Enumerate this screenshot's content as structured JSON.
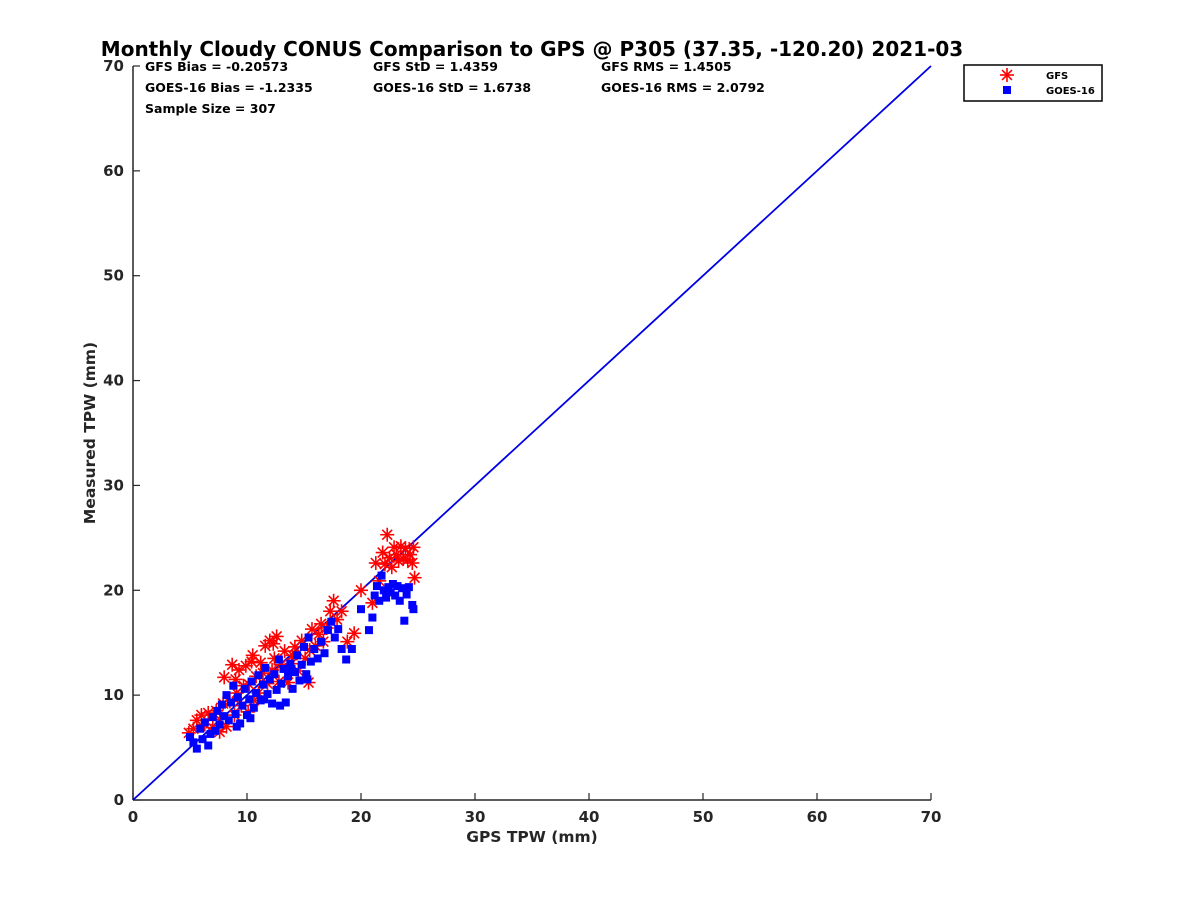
{
  "chart_data": {
    "type": "scatter",
    "title": "Monthly Cloudy CONUS Comparison to GPS @ P305 (37.35, -120.20) 2021-03",
    "xlabel": "GPS TPW (mm)",
    "ylabel": "Measured TPW (mm)",
    "xlim": [
      0,
      70
    ],
    "ylim": [
      0,
      70
    ],
    "xticks": [
      "0",
      "10",
      "20",
      "30",
      "40",
      "50",
      "60",
      "70"
    ],
    "yticks": [
      "0",
      "10",
      "20",
      "30",
      "40",
      "50",
      "60",
      "70"
    ],
    "grid": false,
    "legend_position": "top-right (outside plot)",
    "stats": {
      "gfs_bias": "GFS Bias = -0.20573",
      "gfs_std": "GFS StD = 1.4359",
      "gfs_rms": "GFS RMS = 1.4505",
      "goes_bias": "GOES-16 Bias = -1.2335",
      "goes_std": "GOES-16 StD = 1.6738",
      "goes_rms": "GOES-16 RMS = 2.0792",
      "sample_size": "Sample Size = 307"
    },
    "reference_line": {
      "x": [
        0,
        70
      ],
      "y": [
        0,
        70
      ],
      "color": "#0000e6"
    },
    "series": [
      {
        "name": "GFS",
        "marker": "asterisk",
        "color": "#ff0000",
        "points": [
          [
            4.9,
            6.4
          ],
          [
            5.3,
            6.8
          ],
          [
            5.6,
            7.6
          ],
          [
            6.0,
            8.1
          ],
          [
            6.3,
            7.2
          ],
          [
            6.6,
            8.3
          ],
          [
            7.0,
            6.9
          ],
          [
            7.3,
            8.5
          ],
          [
            7.6,
            7.7
          ],
          [
            7.9,
            9.2
          ],
          [
            8.2,
            7.0
          ],
          [
            8.5,
            9.4
          ],
          [
            8.7,
            12.9
          ],
          [
            8.9,
            8.1
          ],
          [
            9.1,
            10.2
          ],
          [
            9.3,
            12.4
          ],
          [
            9.5,
            9.0
          ],
          [
            9.7,
            10.9
          ],
          [
            9.9,
            12.8
          ],
          [
            10.1,
            8.4
          ],
          [
            10.2,
            11.0
          ],
          [
            10.4,
            13.2
          ],
          [
            10.6,
            9.5
          ],
          [
            10.8,
            11.8
          ],
          [
            11.0,
            10.2
          ],
          [
            11.2,
            13.1
          ],
          [
            11.4,
            12.1
          ],
          [
            11.6,
            14.7
          ],
          [
            11.8,
            11.1
          ],
          [
            12.0,
            15.2
          ],
          [
            12.2,
            12.4
          ],
          [
            12.4,
            13.5
          ],
          [
            12.6,
            15.6
          ],
          [
            12.8,
            11.3
          ],
          [
            13.0,
            12.9
          ],
          [
            13.3,
            14.2
          ],
          [
            13.6,
            11.2
          ],
          [
            13.9,
            13.0
          ],
          [
            14.2,
            14.6
          ],
          [
            14.5,
            12.3
          ],
          [
            14.8,
            15.2
          ],
          [
            15.1,
            13.5
          ],
          [
            15.4,
            11.2
          ],
          [
            15.7,
            16.3
          ],
          [
            16.0,
            14.7
          ],
          [
            16.3,
            15.8
          ],
          [
            16.7,
            15.1
          ],
          [
            17.0,
            16.4
          ],
          [
            17.3,
            18.0
          ],
          [
            17.6,
            19.0
          ],
          [
            17.9,
            17.2
          ],
          [
            18.3,
            18.0
          ],
          [
            18.8,
            15.1
          ],
          [
            19.4,
            15.9
          ],
          [
            20.0,
            20.0
          ],
          [
            21.0,
            18.8
          ],
          [
            21.3,
            22.6
          ],
          [
            21.6,
            20.9
          ],
          [
            21.9,
            23.6
          ],
          [
            22.1,
            22.5
          ],
          [
            22.3,
            25.3
          ],
          [
            22.5,
            23.1
          ],
          [
            22.7,
            22.2
          ],
          [
            22.9,
            24.1
          ],
          [
            23.1,
            23.4
          ],
          [
            23.3,
            22.8
          ],
          [
            23.5,
            24.2
          ],
          [
            23.7,
            23.0
          ],
          [
            23.9,
            24.0
          ],
          [
            24.1,
            22.9
          ],
          [
            24.3,
            23.4
          ],
          [
            24.5,
            22.6
          ],
          [
            24.6,
            24.1
          ],
          [
            24.7,
            21.2
          ],
          [
            8.0,
            11.7
          ],
          [
            7.6,
            6.5
          ],
          [
            9.0,
            11.5
          ],
          [
            10.5,
            13.8
          ],
          [
            12.3,
            14.9
          ],
          [
            14.0,
            13.8
          ],
          [
            15.5,
            14.3
          ],
          [
            16.5,
            16.8
          ]
        ]
      },
      {
        "name": "GOES-16",
        "marker": "square",
        "color": "#0000ff",
        "points": [
          [
            5.0,
            6.0
          ],
          [
            5.3,
            5.5
          ],
          [
            5.6,
            4.9
          ],
          [
            5.9,
            6.8
          ],
          [
            6.1,
            5.8
          ],
          [
            6.3,
            7.4
          ],
          [
            6.6,
            5.2
          ],
          [
            6.8,
            6.3
          ],
          [
            7.0,
            7.9
          ],
          [
            7.2,
            6.6
          ],
          [
            7.4,
            8.5
          ],
          [
            7.6,
            7.2
          ],
          [
            7.8,
            9.1
          ],
          [
            8.0,
            8.0
          ],
          [
            8.2,
            10.0
          ],
          [
            8.4,
            7.6
          ],
          [
            8.6,
            9.3
          ],
          [
            8.8,
            10.9
          ],
          [
            9.0,
            8.2
          ],
          [
            9.2,
            9.8
          ],
          [
            9.4,
            7.3
          ],
          [
            9.6,
            9.0
          ],
          [
            9.8,
            10.6
          ],
          [
            10.0,
            8.1
          ],
          [
            10.2,
            9.6
          ],
          [
            10.4,
            11.3
          ],
          [
            10.6,
            8.8
          ],
          [
            10.8,
            10.2
          ],
          [
            11.0,
            11.9
          ],
          [
            11.2,
            9.5
          ],
          [
            11.4,
            11.0
          ],
          [
            11.6,
            12.6
          ],
          [
            11.8,
            10.1
          ],
          [
            12.0,
            11.5
          ],
          [
            12.2,
            9.2
          ],
          [
            12.4,
            12.0
          ],
          [
            12.6,
            10.5
          ],
          [
            12.8,
            13.4
          ],
          [
            13.0,
            11.1
          ],
          [
            13.2,
            12.5
          ],
          [
            13.4,
            9.3
          ],
          [
            13.6,
            11.8
          ],
          [
            13.8,
            13.0
          ],
          [
            14.0,
            10.6
          ],
          [
            14.2,
            12.2
          ],
          [
            14.4,
            13.8
          ],
          [
            14.6,
            11.4
          ],
          [
            14.8,
            12.9
          ],
          [
            15.0,
            14.6
          ],
          [
            15.2,
            12.0
          ],
          [
            15.4,
            15.5
          ],
          [
            15.6,
            13.2
          ],
          [
            15.9,
            14.4
          ],
          [
            16.2,
            13.5
          ],
          [
            16.5,
            15.1
          ],
          [
            16.8,
            14.0
          ],
          [
            17.1,
            16.2
          ],
          [
            17.4,
            17.0
          ],
          [
            17.7,
            15.5
          ],
          [
            18.0,
            16.3
          ],
          [
            18.3,
            14.4
          ],
          [
            18.7,
            13.4
          ],
          [
            19.2,
            14.4
          ],
          [
            20.0,
            18.2
          ],
          [
            20.7,
            16.2
          ],
          [
            21.0,
            17.4
          ],
          [
            21.2,
            19.5
          ],
          [
            21.4,
            20.4
          ],
          [
            21.6,
            19.0
          ],
          [
            21.8,
            21.4
          ],
          [
            22.0,
            20.0
          ],
          [
            22.2,
            19.3
          ],
          [
            22.4,
            20.3
          ],
          [
            22.6,
            19.8
          ],
          [
            22.8,
            20.6
          ],
          [
            23.0,
            19.5
          ],
          [
            23.2,
            20.4
          ],
          [
            23.4,
            19.0
          ],
          [
            23.6,
            20.2
          ],
          [
            23.8,
            17.1
          ],
          [
            24.0,
            19.6
          ],
          [
            24.2,
            20.3
          ],
          [
            24.5,
            18.6
          ],
          [
            24.6,
            18.2
          ],
          [
            9.1,
            7.0
          ],
          [
            10.3,
            7.8
          ],
          [
            11.5,
            9.6
          ],
          [
            12.9,
            9.0
          ],
          [
            13.9,
            12.5
          ],
          [
            15.3,
            11.5
          ]
        ]
      }
    ]
  }
}
